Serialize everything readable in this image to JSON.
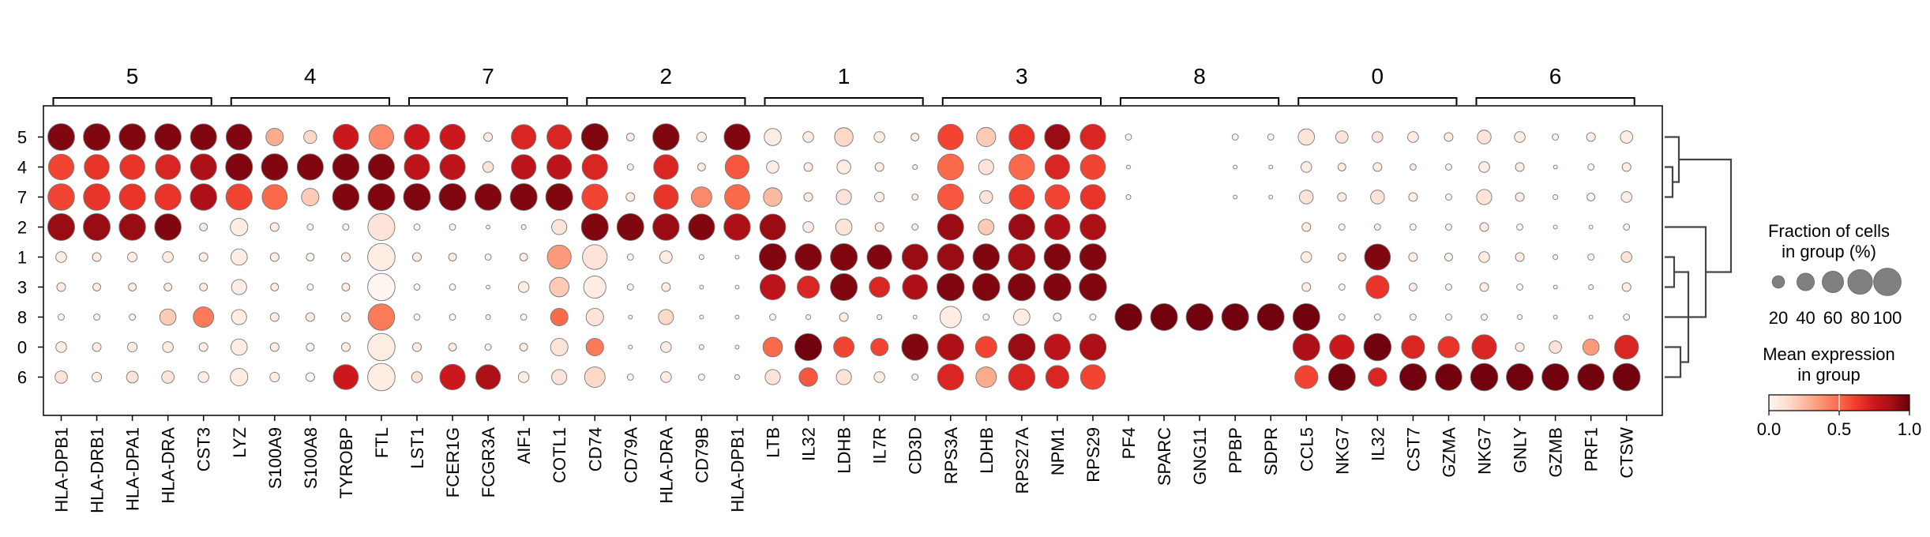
{
  "chart_data": {
    "type": "dotplot",
    "groups": [
      {
        "label": "5",
        "genes": [
          "HLA-DPB1",
          "HLA-DRB1",
          "HLA-DPA1",
          "HLA-DRA",
          "CST3"
        ]
      },
      {
        "label": "4",
        "genes": [
          "LYZ",
          "S100A9",
          "S100A8",
          "TYROBP",
          "FTL"
        ]
      },
      {
        "label": "7",
        "genes": [
          "LST1",
          "FCER1G",
          "FCGR3A",
          "AIF1",
          "COTL1"
        ]
      },
      {
        "label": "2",
        "genes": [
          "CD74",
          "CD79A",
          "HLA-DRA",
          "CD79B",
          "HLA-DPB1"
        ]
      },
      {
        "label": "1",
        "genes": [
          "LTB",
          "IL32",
          "LDHB",
          "IL7R",
          "CD3D"
        ]
      },
      {
        "label": "3",
        "genes": [
          "RPS3A",
          "LDHB",
          "RPS27A",
          "NPM1",
          "RPS29"
        ]
      },
      {
        "label": "8",
        "genes": [
          "PF4",
          "SPARC",
          "GNG11",
          "PPBP",
          "SDPR"
        ]
      },
      {
        "label": "0",
        "genes": [
          "CCL5",
          "NKG7",
          "IL32",
          "CST7",
          "GZMA"
        ]
      },
      {
        "label": "6",
        "genes": [
          "NKG7",
          "GNLY",
          "GZMB",
          "PRF1",
          "CTSW"
        ]
      }
    ],
    "rows": [
      "5",
      "4",
      "7",
      "2",
      "1",
      "3",
      "8",
      "0",
      "6"
    ],
    "fraction": [
      [
        0.94,
        0.94,
        0.92,
        0.92,
        0.9,
        0.88,
        0.4,
        0.22,
        0.85,
        0.8,
        0.85,
        0.85,
        0.1,
        0.8,
        0.8,
        0.95,
        0.08,
        0.92,
        0.12,
        0.9,
        0.38,
        0.15,
        0.45,
        0.15,
        0.08,
        0.85,
        0.48,
        0.85,
        0.85,
        0.85,
        0.05,
        0.0,
        0.0,
        0.05,
        0.05,
        0.35,
        0.2,
        0.15,
        0.15,
        0.1,
        0.25,
        0.15,
        0.05,
        0.1,
        0.2
      ],
      [
        0.85,
        0.82,
        0.82,
        0.82,
        0.9,
        0.95,
        0.92,
        0.9,
        0.92,
        0.9,
        0.85,
        0.85,
        0.15,
        0.8,
        0.8,
        0.85,
        0.05,
        0.8,
        0.08,
        0.75,
        0.2,
        0.1,
        0.25,
        0.1,
        0.03,
        0.88,
        0.3,
        0.85,
        0.8,
        0.82,
        0.02,
        0.0,
        0.0,
        0.02,
        0.02,
        0.15,
        0.08,
        0.1,
        0.05,
        0.05,
        0.15,
        0.1,
        0.02,
        0.05,
        0.1
      ],
      [
        0.92,
        0.92,
        0.9,
        0.9,
        0.92,
        0.9,
        0.82,
        0.4,
        0.92,
        0.95,
        0.95,
        0.95,
        0.92,
        0.95,
        0.95,
        0.88,
        0.1,
        0.8,
        0.55,
        0.82,
        0.45,
        0.1,
        0.3,
        0.12,
        0.05,
        0.88,
        0.22,
        0.82,
        0.8,
        0.82,
        0.03,
        0.0,
        0.0,
        0.02,
        0.02,
        0.25,
        0.1,
        0.25,
        0.1,
        0.05,
        0.3,
        0.1,
        0.03,
        0.08,
        0.15
      ],
      [
        0.95,
        0.95,
        0.92,
        0.92,
        0.08,
        0.4,
        0.1,
        0.05,
        0.05,
        0.95,
        0.05,
        0.05,
        0.02,
        0.03,
        0.3,
        0.95,
        0.95,
        0.92,
        0.9,
        0.92,
        0.88,
        0.15,
        0.35,
        0.1,
        0.05,
        0.9,
        0.32,
        0.9,
        0.85,
        0.88,
        0.0,
        0.0,
        0.0,
        0.0,
        0.0,
        0.1,
        0.05,
        0.05,
        0.05,
        0.05,
        0.1,
        0.05,
        0.02,
        0.02,
        0.05
      ],
      [
        0.15,
        0.1,
        0.12,
        0.15,
        0.1,
        0.35,
        0.1,
        0.08,
        0.1,
        0.98,
        0.1,
        0.08,
        0.05,
        0.08,
        0.75,
        0.8,
        0.05,
        0.2,
        0.03,
        0.02,
        0.95,
        0.92,
        0.95,
        0.8,
        0.88,
        0.93,
        0.92,
        0.95,
        0.92,
        0.93,
        0.0,
        0.0,
        0.0,
        0.0,
        0.0,
        0.15,
        0.08,
        0.88,
        0.1,
        0.08,
        0.15,
        0.1,
        0.03,
        0.05,
        0.15
      ],
      [
        0.1,
        0.08,
        0.08,
        0.08,
        0.08,
        0.3,
        0.08,
        0.05,
        0.08,
        0.98,
        0.05,
        0.05,
        0.02,
        0.15,
        0.5,
        0.65,
        0.05,
        0.1,
        0.02,
        0.02,
        0.85,
        0.65,
        0.95,
        0.55,
        0.82,
        0.98,
        0.98,
        0.98,
        0.98,
        0.98,
        0.0,
        0.0,
        0.0,
        0.0,
        0.0,
        0.1,
        0.05,
        0.7,
        0.08,
        0.05,
        0.1,
        0.05,
        0.02,
        0.03,
        0.1
      ],
      [
        0.05,
        0.05,
        0.05,
        0.35,
        0.55,
        0.3,
        0.1,
        0.1,
        0.1,
        0.92,
        0.05,
        0.05,
        0.03,
        0.05,
        0.4,
        0.4,
        0.02,
        0.3,
        0.02,
        0.02,
        0.05,
        0.03,
        0.1,
        0.03,
        0.02,
        0.6,
        0.05,
        0.35,
        0.08,
        0.05,
        0.95,
        0.95,
        0.95,
        0.95,
        0.95,
        0.95,
        0.05,
        0.05,
        0.05,
        0.05,
        0.05,
        0.03,
        0.02,
        0.02,
        0.05
      ],
      [
        0.15,
        0.1,
        0.12,
        0.15,
        0.1,
        0.35,
        0.1,
        0.08,
        0.1,
        0.98,
        0.1,
        0.08,
        0.05,
        0.08,
        0.4,
        0.4,
        0.02,
        0.15,
        0.03,
        0.02,
        0.5,
        0.95,
        0.55,
        0.4,
        0.92,
        0.92,
        0.6,
        0.95,
        0.9,
        0.92,
        0.0,
        0.0,
        0.0,
        0.0,
        0.0,
        0.95,
        0.8,
        0.98,
        0.7,
        0.6,
        0.8,
        0.1,
        0.2,
        0.35,
        0.75
      ],
      [
        0.2,
        0.12,
        0.18,
        0.2,
        0.15,
        0.4,
        0.12,
        0.1,
        0.82,
        0.98,
        0.15,
        0.85,
        0.8,
        0.15,
        0.3,
        0.55,
        0.05,
        0.15,
        0.05,
        0.03,
        0.3,
        0.45,
        0.3,
        0.15,
        0.05,
        0.9,
        0.55,
        0.92,
        0.7,
        0.8,
        0.0,
        0.0,
        0.0,
        0.0,
        0.0,
        0.7,
        0.95,
        0.45,
        0.95,
        0.92,
        0.98,
        0.95,
        0.95,
        0.93,
        0.98
      ]
    ],
    "expression": [
      [
        0.95,
        0.95,
        0.95,
        0.95,
        0.95,
        0.95,
        0.3,
        0.15,
        0.75,
        0.4,
        0.75,
        0.75,
        0.05,
        0.7,
        0.7,
        0.95,
        0.05,
        0.95,
        0.05,
        0.95,
        0.05,
        0.05,
        0.15,
        0.05,
        0.05,
        0.6,
        0.2,
        0.65,
        0.9,
        0.7,
        0.0,
        0.0,
        0.0,
        0.0,
        0.0,
        0.1,
        0.1,
        0.1,
        0.05,
        0.05,
        0.1,
        0.05,
        0.0,
        0.05,
        0.05
      ],
      [
        0.6,
        0.65,
        0.65,
        0.7,
        0.85,
        0.95,
        0.95,
        0.95,
        0.95,
        0.95,
        0.8,
        0.8,
        0.1,
        0.8,
        0.8,
        0.7,
        0.05,
        0.7,
        0.05,
        0.55,
        0.05,
        0.05,
        0.05,
        0.05,
        0.0,
        0.5,
        0.1,
        0.5,
        0.7,
        0.6,
        0.0,
        0.0,
        0.0,
        0.0,
        0.0,
        0.05,
        0.05,
        0.05,
        0.05,
        0.0,
        0.05,
        0.05,
        0.0,
        0.0,
        0.05
      ],
      [
        0.6,
        0.65,
        0.65,
        0.65,
        0.85,
        0.6,
        0.5,
        0.2,
        0.95,
        0.95,
        0.95,
        0.95,
        0.95,
        0.95,
        0.95,
        0.6,
        0.05,
        0.65,
        0.4,
        0.5,
        0.25,
        0.05,
        0.1,
        0.05,
        0.05,
        0.55,
        0.1,
        0.6,
        0.6,
        0.65,
        0.0,
        0.0,
        0.0,
        0.0,
        0.0,
        0.1,
        0.05,
        0.1,
        0.05,
        0.0,
        0.1,
        0.05,
        0.0,
        0.0,
        0.05
      ],
      [
        0.9,
        0.9,
        0.9,
        0.95,
        0.05,
        0.05,
        0.05,
        0.0,
        0.0,
        0.1,
        0.0,
        0.0,
        0.0,
        0.0,
        0.1,
        0.95,
        0.95,
        0.9,
        0.95,
        0.85,
        0.9,
        0.05,
        0.1,
        0.05,
        0.05,
        0.9,
        0.2,
        0.9,
        0.85,
        0.85,
        0.0,
        0.0,
        0.0,
        0.0,
        0.0,
        0.05,
        0.0,
        0.05,
        0.0,
        0.0,
        0.05,
        0.0,
        0.0,
        0.0,
        0.0
      ],
      [
        0.05,
        0.05,
        0.05,
        0.05,
        0.05,
        0.05,
        0.05,
        0.0,
        0.05,
        0.05,
        0.05,
        0.05,
        0.0,
        0.05,
        0.35,
        0.1,
        0.0,
        0.05,
        0.0,
        0.0,
        0.95,
        0.95,
        0.95,
        0.95,
        0.9,
        0.9,
        0.95,
        0.9,
        0.95,
        0.95,
        0.0,
        0.0,
        0.0,
        0.0,
        0.0,
        0.05,
        0.05,
        0.95,
        0.05,
        0.0,
        0.05,
        0.05,
        0.0,
        0.0,
        0.1
      ],
      [
        0.05,
        0.05,
        0.05,
        0.05,
        0.05,
        0.05,
        0.05,
        0.0,
        0.05,
        0.0,
        0.0,
        0.0,
        0.0,
        0.05,
        0.2,
        0.05,
        0.0,
        0.05,
        0.0,
        0.0,
        0.8,
        0.7,
        0.95,
        0.7,
        0.85,
        0.95,
        0.95,
        0.95,
        0.95,
        0.95,
        0.0,
        0.0,
        0.0,
        0.0,
        0.0,
        0.05,
        0.0,
        0.65,
        0.05,
        0.0,
        0.05,
        0.0,
        0.0,
        0.0,
        0.05
      ],
      [
        0.0,
        0.0,
        0.0,
        0.2,
        0.45,
        0.05,
        0.05,
        0.05,
        0.05,
        0.45,
        0.0,
        0.0,
        0.0,
        0.0,
        0.5,
        0.1,
        0.0,
        0.15,
        0.0,
        0.0,
        0.0,
        0.0,
        0.05,
        0.0,
        0.0,
        0.05,
        0.0,
        0.05,
        0.0,
        0.0,
        0.98,
        0.98,
        0.98,
        0.98,
        0.98,
        0.98,
        0.0,
        0.0,
        0.0,
        0.0,
        0.0,
        0.0,
        0.0,
        0.0,
        0.0
      ],
      [
        0.05,
        0.05,
        0.05,
        0.05,
        0.05,
        0.05,
        0.05,
        0.0,
        0.05,
        0.05,
        0.05,
        0.05,
        0.0,
        0.05,
        0.1,
        0.45,
        0.0,
        0.05,
        0.0,
        0.0,
        0.5,
        0.98,
        0.6,
        0.6,
        0.95,
        0.85,
        0.6,
        0.9,
        0.8,
        0.85,
        0.0,
        0.0,
        0.0,
        0.0,
        0.0,
        0.85,
        0.75,
        0.98,
        0.7,
        0.65,
        0.7,
        0.05,
        0.1,
        0.35,
        0.7
      ],
      [
        0.1,
        0.05,
        0.1,
        0.1,
        0.05,
        0.05,
        0.05,
        0.0,
        0.75,
        0.05,
        0.1,
        0.75,
        0.85,
        0.05,
        0.1,
        0.15,
        0.0,
        0.05,
        0.0,
        0.0,
        0.1,
        0.55,
        0.1,
        0.05,
        0.05,
        0.7,
        0.3,
        0.7,
        0.7,
        0.6,
        0.0,
        0.0,
        0.0,
        0.0,
        0.0,
        0.6,
        0.98,
        0.7,
        0.98,
        0.98,
        0.98,
        0.98,
        0.98,
        0.98,
        0.98
      ]
    ],
    "size_legend": {
      "title": [
        "Fraction of cells",
        "in group (%)"
      ],
      "values": [
        20,
        40,
        60,
        80,
        100
      ]
    },
    "color_legend": {
      "title": [
        "Mean expression",
        "in group"
      ],
      "ticks": [
        "0.0",
        "0.5",
        "1.0"
      ]
    },
    "colormap": "Reds",
    "dendrogram": "right"
  }
}
